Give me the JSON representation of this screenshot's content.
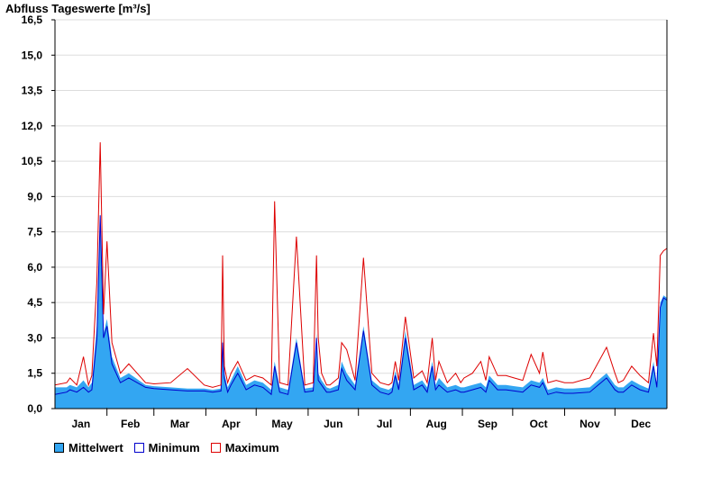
{
  "chart_data": {
    "type": "area",
    "title": "Abfluss Tageswerte [m³/s]",
    "xlabel": "",
    "ylabel": "",
    "ylim": [
      0,
      16.5
    ],
    "y_ticks": [
      "0,0",
      "1,5",
      "3,0",
      "4,5",
      "6,0",
      "7,5",
      "9,0",
      "10,5",
      "12,0",
      "13,5",
      "15,0",
      "16,5"
    ],
    "categories": [
      "Jan",
      "Feb",
      "Mar",
      "Apr",
      "May",
      "Jun",
      "Jul",
      "Aug",
      "Sep",
      "Oct",
      "Nov",
      "Dec"
    ],
    "grid": true,
    "legend_position": "bottom-left",
    "colors": {
      "mean": "#33a6f2",
      "min": "#0000cc",
      "max": "#dd0000"
    },
    "series": [
      {
        "name": "Mittelwert",
        "key": "mean",
        "x": [
          1,
          8,
          10,
          14,
          18,
          21,
          23,
          26,
          28,
          30,
          32,
          35,
          40,
          45,
          55,
          60,
          70,
          80,
          90,
          95,
          100,
          101,
          102,
          104,
          106,
          110,
          115,
          120,
          125,
          130,
          132,
          135,
          140,
          145,
          150,
          155,
          157,
          158,
          160,
          163,
          165,
          170,
          172,
          175,
          180,
          185,
          190,
          195,
          200,
          202,
          204,
          206,
          210,
          215,
          220,
          223,
          226,
          228,
          230,
          235,
          240,
          243,
          245,
          250,
          255,
          258,
          260,
          265,
          270,
          275,
          280,
          285,
          290,
          292,
          295,
          300,
          305,
          310,
          320,
          330,
          335,
          337,
          340,
          345,
          350,
          355,
          358,
          360,
          362,
          364,
          366
        ],
        "y": [
          0.9,
          0.9,
          1.0,
          0.9,
          1.2,
          0.9,
          1.1,
          3.5,
          8.3,
          3.2,
          3.8,
          2.2,
          1.3,
          1.5,
          1.0,
          0.95,
          0.9,
          0.85,
          0.85,
          0.8,
          0.85,
          3.0,
          1.5,
          0.9,
          1.2,
          1.8,
          1.0,
          1.2,
          1.1,
          0.8,
          2.0,
          0.9,
          0.8,
          3.0,
          0.85,
          0.9,
          3.2,
          1.5,
          1.2,
          0.9,
          0.85,
          1.0,
          2.0,
          1.5,
          1.0,
          3.5,
          1.2,
          0.9,
          0.8,
          0.9,
          1.6,
          1.0,
          3.3,
          1.0,
          1.2,
          0.9,
          2.0,
          1.0,
          1.3,
          0.9,
          1.0,
          0.9,
          0.9,
          1.0,
          1.1,
          0.9,
          1.4,
          1.0,
          1.0,
          0.95,
          0.9,
          1.2,
          1.1,
          1.3,
          0.8,
          0.9,
          0.85,
          0.85,
          0.9,
          1.5,
          1.0,
          0.9,
          0.9,
          1.2,
          1.0,
          0.85,
          2.0,
          1.0,
          4.5,
          4.8,
          4.7
        ]
      },
      {
        "name": "Minimum",
        "key": "min",
        "x": [
          1,
          8,
          10,
          14,
          18,
          21,
          23,
          26,
          28,
          30,
          32,
          35,
          40,
          45,
          55,
          60,
          70,
          80,
          90,
          95,
          100,
          101,
          102,
          104,
          106,
          110,
          115,
          120,
          125,
          130,
          132,
          135,
          140,
          145,
          150,
          155,
          157,
          158,
          160,
          163,
          165,
          170,
          172,
          175,
          180,
          185,
          190,
          195,
          200,
          202,
          204,
          206,
          210,
          215,
          220,
          223,
          226,
          228,
          230,
          235,
          240,
          243,
          245,
          250,
          255,
          258,
          260,
          265,
          270,
          275,
          280,
          285,
          290,
          292,
          295,
          300,
          305,
          310,
          320,
          330,
          335,
          337,
          340,
          345,
          350,
          355,
          358,
          360,
          362,
          364,
          366
        ],
        "y": [
          0.6,
          0.7,
          0.8,
          0.7,
          0.9,
          0.7,
          0.8,
          3.0,
          8.2,
          3.0,
          3.5,
          1.9,
          1.1,
          1.3,
          0.9,
          0.85,
          0.8,
          0.75,
          0.75,
          0.7,
          0.75,
          2.8,
          1.3,
          0.7,
          1.0,
          1.5,
          0.8,
          1.0,
          0.9,
          0.6,
          1.8,
          0.7,
          0.6,
          2.8,
          0.7,
          0.75,
          3.0,
          1.2,
          1.0,
          0.7,
          0.7,
          0.8,
          1.7,
          1.2,
          0.8,
          3.3,
          1.0,
          0.7,
          0.6,
          0.7,
          1.4,
          0.8,
          3.0,
          0.8,
          1.0,
          0.7,
          1.8,
          0.8,
          1.0,
          0.7,
          0.8,
          0.7,
          0.7,
          0.8,
          0.9,
          0.7,
          1.2,
          0.8,
          0.8,
          0.75,
          0.7,
          1.0,
          0.9,
          1.1,
          0.6,
          0.7,
          0.65,
          0.65,
          0.7,
          1.3,
          0.8,
          0.7,
          0.7,
          1.0,
          0.8,
          0.7,
          1.8,
          0.9,
          4.3,
          4.7,
          4.6
        ]
      },
      {
        "name": "Maximum",
        "key": "max",
        "x": [
          1,
          8,
          10,
          14,
          18,
          21,
          23,
          26,
          28,
          30,
          32,
          35,
          40,
          45,
          55,
          60,
          70,
          80,
          90,
          95,
          100,
          101,
          102,
          104,
          106,
          110,
          115,
          120,
          125,
          130,
          132,
          135,
          140,
          145,
          150,
          155,
          157,
          158,
          160,
          163,
          165,
          170,
          172,
          175,
          180,
          185,
          190,
          195,
          200,
          202,
          204,
          206,
          210,
          215,
          220,
          223,
          226,
          228,
          230,
          235,
          240,
          243,
          245,
          250,
          255,
          258,
          260,
          265,
          270,
          275,
          280,
          285,
          290,
          292,
          295,
          300,
          305,
          310,
          320,
          330,
          335,
          337,
          340,
          345,
          350,
          355,
          358,
          360,
          362,
          364,
          366
        ],
        "y": [
          1.0,
          1.1,
          1.3,
          1.0,
          2.2,
          1.0,
          1.4,
          5.4,
          11.3,
          4.0,
          7.1,
          2.8,
          1.5,
          1.9,
          1.1,
          1.05,
          1.1,
          1.7,
          1.0,
          0.9,
          1.0,
          6.5,
          1.8,
          1.1,
          1.5,
          2.0,
          1.2,
          1.4,
          1.3,
          1.0,
          8.8,
          1.1,
          1.0,
          7.3,
          1.0,
          1.1,
          6.5,
          3.0,
          1.5,
          1.0,
          1.0,
          1.3,
          2.8,
          2.5,
          1.2,
          6.4,
          1.5,
          1.1,
          1.0,
          1.1,
          2.0,
          1.2,
          3.9,
          1.3,
          1.6,
          1.1,
          3.0,
          1.2,
          2.0,
          1.1,
          1.5,
          1.1,
          1.3,
          1.5,
          2.0,
          1.2,
          2.2,
          1.4,
          1.4,
          1.3,
          1.2,
          2.3,
          1.5,
          2.4,
          1.1,
          1.2,
          1.1,
          1.1,
          1.3,
          2.6,
          1.5,
          1.1,
          1.2,
          1.8,
          1.4,
          1.1,
          3.2,
          1.8,
          6.5,
          6.7,
          6.8
        ]
      }
    ]
  }
}
